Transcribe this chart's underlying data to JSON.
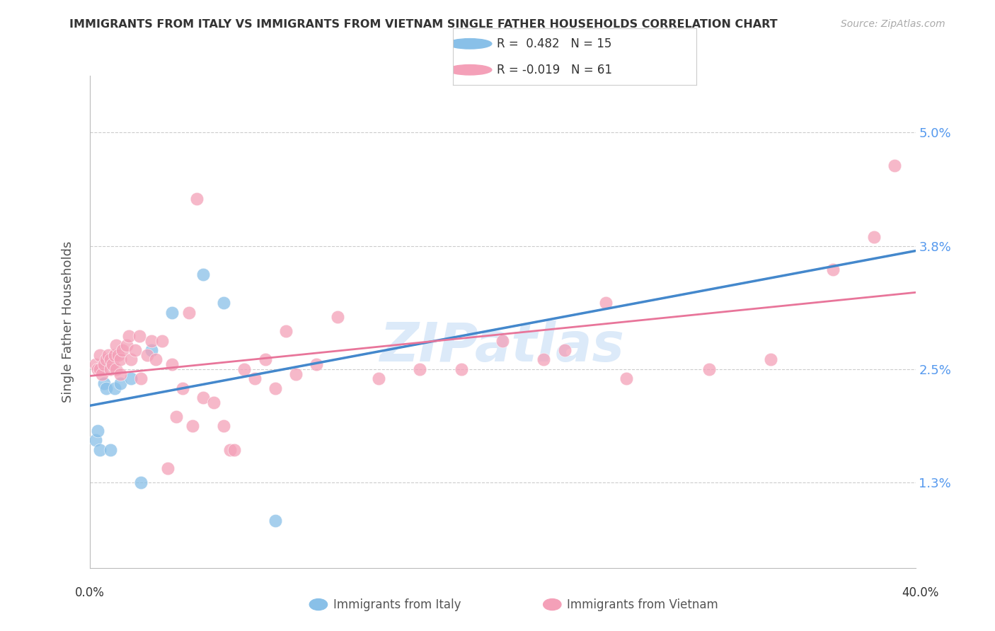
{
  "title": "IMMIGRANTS FROM ITALY VS IMMIGRANTS FROM VIETNAM SINGLE FATHER HOUSEHOLDS CORRELATION CHART",
  "source": "Source: ZipAtlas.com",
  "ylabel": "Single Father Households",
  "ytick_labels": [
    "1.3%",
    "2.5%",
    "3.8%",
    "5.0%"
  ],
  "ytick_values": [
    0.013,
    0.025,
    0.038,
    0.05
  ],
  "xlim": [
    0.0,
    0.4
  ],
  "ylim": [
    0.004,
    0.056
  ],
  "italy_color": "#89C0E8",
  "vietnam_color": "#F4A0B8",
  "italy_line_color": "#4488CC",
  "vietnam_line_color": "#E8759A",
  "italy_dash_color": "#AACCEE",
  "watermark": "ZIPatlas",
  "background_color": "#FFFFFF",
  "grid_color": "#CCCCCC",
  "italy_x": [
    0.003,
    0.004,
    0.005,
    0.007,
    0.008,
    0.01,
    0.012,
    0.015,
    0.02,
    0.025,
    0.03,
    0.04,
    0.055,
    0.065,
    0.09
  ],
  "italy_y": [
    0.0175,
    0.0185,
    0.0165,
    0.0235,
    0.023,
    0.0165,
    0.023,
    0.0235,
    0.024,
    0.013,
    0.027,
    0.031,
    0.035,
    0.032,
    0.009
  ],
  "vietnam_x": [
    0.003,
    0.004,
    0.005,
    0.005,
    0.006,
    0.007,
    0.008,
    0.009,
    0.01,
    0.01,
    0.011,
    0.012,
    0.013,
    0.013,
    0.014,
    0.015,
    0.015,
    0.016,
    0.018,
    0.019,
    0.02,
    0.022,
    0.024,
    0.025,
    0.028,
    0.03,
    0.032,
    0.035,
    0.04,
    0.045,
    0.05,
    0.055,
    0.06,
    0.065,
    0.068,
    0.07,
    0.075,
    0.08,
    0.085,
    0.09,
    0.095,
    0.1,
    0.11,
    0.12,
    0.14,
    0.16,
    0.18,
    0.2,
    0.22,
    0.23,
    0.25,
    0.26,
    0.3,
    0.33,
    0.36,
    0.38,
    0.39,
    0.038,
    0.042,
    0.048,
    0.052
  ],
  "vietnam_y": [
    0.0255,
    0.025,
    0.0265,
    0.025,
    0.0245,
    0.0255,
    0.026,
    0.0265,
    0.026,
    0.025,
    0.0255,
    0.0265,
    0.025,
    0.0275,
    0.0265,
    0.026,
    0.0245,
    0.027,
    0.0275,
    0.0285,
    0.026,
    0.027,
    0.0285,
    0.024,
    0.0265,
    0.028,
    0.026,
    0.028,
    0.0255,
    0.023,
    0.019,
    0.022,
    0.0215,
    0.019,
    0.0165,
    0.0165,
    0.025,
    0.024,
    0.026,
    0.023,
    0.029,
    0.0245,
    0.0255,
    0.0305,
    0.024,
    0.025,
    0.025,
    0.028,
    0.026,
    0.027,
    0.032,
    0.024,
    0.025,
    0.026,
    0.0355,
    0.039,
    0.0465,
    0.0145,
    0.02,
    0.031,
    0.043
  ],
  "legend_text_italy": "R =  0.482   N = 15",
  "legend_text_vietnam": "R = -0.019   N = 61"
}
